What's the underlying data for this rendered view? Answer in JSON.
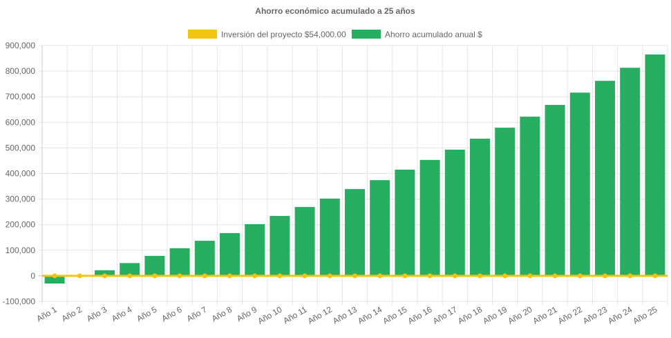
{
  "chart_data": {
    "type": "bar",
    "title": "Ahorro económico acumulado a 25 años",
    "legend_position": "top",
    "grid": true,
    "ylim": [
      -100000,
      900000
    ],
    "yticks": [
      -100000,
      0,
      100000,
      200000,
      300000,
      400000,
      500000,
      600000,
      700000,
      800000,
      900000
    ],
    "ytick_labels": [
      "-100,000",
      "0",
      "100,000",
      "200,000",
      "300,000",
      "400,000",
      "500,000",
      "600,000",
      "700,000",
      "800,000",
      "900,000"
    ],
    "categories": [
      "Año 1",
      "Año 2",
      "Año 3",
      "Año 4",
      "Año 5",
      "Año 6",
      "Año 7",
      "Año 8",
      "Año 9",
      "Año 10",
      "Año 11",
      "Año 12",
      "Año 13",
      "Año 14",
      "Año 15",
      "Año 16",
      "Año 17",
      "Año 18",
      "Año 19",
      "Año 20",
      "Año 21",
      "Año 22",
      "Año 23",
      "Año 24",
      "Año 25"
    ],
    "series": [
      {
        "name": "Inversión del proyecto $54,000.00",
        "type": "line",
        "color": "#f1c40f",
        "values": [
          0,
          0,
          0,
          0,
          0,
          0,
          0,
          0,
          0,
          0,
          0,
          0,
          0,
          0,
          0,
          0,
          0,
          0,
          0,
          0,
          0,
          0,
          0,
          0,
          0
        ]
      },
      {
        "name": "Ahorro acumulado anual $",
        "type": "bar",
        "color": "#27ae60",
        "values": [
          -30000,
          -2000,
          22000,
          50000,
          78000,
          108000,
          137000,
          167000,
          202000,
          234000,
          269000,
          302000,
          339000,
          374000,
          415000,
          453000,
          493000,
          536000,
          579000,
          622000,
          668000,
          716000,
          762000,
          813000,
          865000
        ]
      }
    ]
  }
}
